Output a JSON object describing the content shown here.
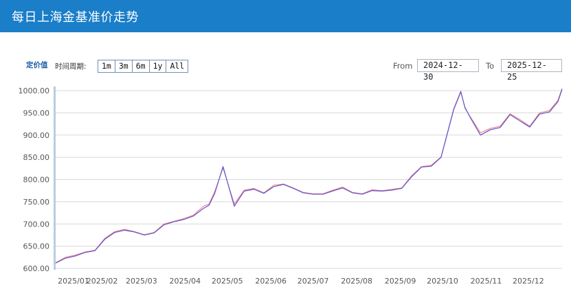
{
  "header": {
    "title": "每日上海金基准价走势"
  },
  "toolbar": {
    "series_label": "定价值",
    "period_label": "时间周期:",
    "period_buttons": [
      "1m",
      "3m",
      "6m",
      "1y",
      "All"
    ],
    "from_label": "From",
    "from_value": "2024-12-30",
    "to_label": "To",
    "to_value": "2025-12-25"
  },
  "colors": {
    "header_bg": "#1a7ec8",
    "series_1": "#f07a7a",
    "series_2": "#6a5acd",
    "grid": "#d8d8d8"
  },
  "chart_data": {
    "type": "line",
    "title": "",
    "xlabel": "",
    "ylabel": "",
    "ylim": [
      600,
      1000
    ],
    "grid": true,
    "yticks": [
      "1000.00",
      "950.00",
      "900.00",
      "850.00",
      "800.00",
      "750.00",
      "700.00",
      "650.00",
      "600.00"
    ],
    "xticks": [
      "2025/01",
      "2025/02",
      "2025/03",
      "2025/04",
      "2025/05",
      "2025/06",
      "2025/07",
      "2025/08",
      "2025/09",
      "2025/10",
      "2025/11",
      "2025/12"
    ],
    "x": [
      "2024-12-30",
      "2025-01-06",
      "2025-01-13",
      "2025-01-20",
      "2025-01-27",
      "2025-02-03",
      "2025-02-10",
      "2025-02-17",
      "2025-02-24",
      "2025-03-03",
      "2025-03-10",
      "2025-03-17",
      "2025-03-24",
      "2025-03-31",
      "2025-04-07",
      "2025-04-14",
      "2025-04-18",
      "2025-04-22",
      "2025-04-28",
      "2025-05-06",
      "2025-05-13",
      "2025-05-20",
      "2025-05-27",
      "2025-06-03",
      "2025-06-10",
      "2025-06-17",
      "2025-06-24",
      "2025-07-01",
      "2025-07-08",
      "2025-07-15",
      "2025-07-22",
      "2025-07-29",
      "2025-08-05",
      "2025-08-12",
      "2025-08-19",
      "2025-08-26",
      "2025-09-02",
      "2025-09-09",
      "2025-09-16",
      "2025-09-23",
      "2025-09-30",
      "2025-10-09",
      "2025-10-14",
      "2025-10-17",
      "2025-10-21",
      "2025-10-28",
      "2025-11-04",
      "2025-11-11",
      "2025-11-18",
      "2025-11-25",
      "2025-12-02",
      "2025-12-09",
      "2025-12-16",
      "2025-12-22",
      "2025-12-25"
    ],
    "series": [
      {
        "values": [
          613,
          625,
          630,
          637,
          641,
          668,
          683,
          688,
          683,
          676,
          681,
          700,
          706,
          712,
          720,
          740,
          745,
          772,
          826,
          745,
          776,
          780,
          770,
          787,
          790,
          781,
          771,
          768,
          768,
          776,
          783,
          771,
          768,
          777,
          775,
          778,
          781,
          808,
          829,
          832,
          851,
          960,
          999,
          960,
          940,
          905,
          915,
          920,
          948,
          935,
          920,
          950,
          955,
          978,
          1005
        ]
      },
      {
        "values": [
          612,
          623,
          628,
          636,
          640,
          666,
          681,
          686,
          682,
          675,
          680,
          698,
          705,
          710,
          718,
          735,
          742,
          768,
          829,
          740,
          774,
          778,
          769,
          784,
          789,
          780,
          770,
          767,
          767,
          774,
          781,
          770,
          767,
          775,
          774,
          776,
          780,
          806,
          828,
          830,
          850,
          958,
          997,
          962,
          938,
          900,
          912,
          917,
          946,
          932,
          918,
          947,
          952,
          975,
          1003
        ]
      }
    ]
  }
}
